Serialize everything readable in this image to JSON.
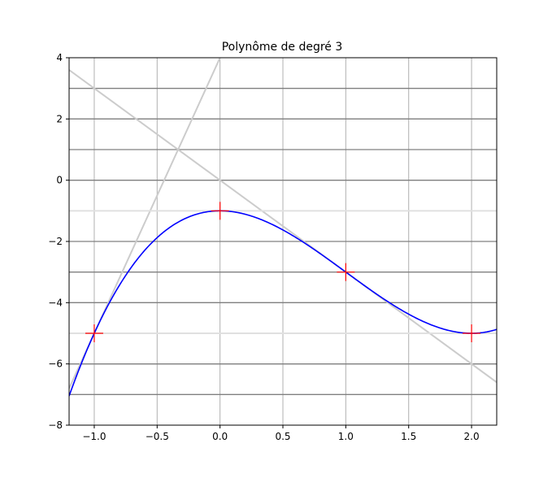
{
  "chart_data": {
    "type": "line",
    "title": "Polynôme de degré 3",
    "xlabel": "",
    "ylabel": "",
    "xlim": [
      -1.2,
      2.2
    ],
    "ylim": [
      -8,
      4
    ],
    "grid": true,
    "x_ticks": [
      -1.0,
      -0.5,
      0.0,
      0.5,
      1.0,
      1.5,
      2.0
    ],
    "x_tick_labels": [
      "−1.0",
      "−0.5",
      "0.0",
      "0.5",
      "1.0",
      "1.5",
      "2.0"
    ],
    "y_ticks": [
      -8,
      -6,
      -4,
      -2,
      0,
      2,
      4
    ],
    "y_tick_labels": [
      "−8",
      "−6",
      "−4",
      "−2",
      "0",
      "2",
      "4"
    ],
    "extra_horizontal_lines": [
      -7,
      -6,
      -5,
      -4,
      -3,
      -2,
      -1,
      0,
      1,
      2,
      3
    ],
    "series": [
      {
        "kind": "curve",
        "function": "x^3 - 3x^2 - 1",
        "x_range": [
          -1.2,
          2.2
        ],
        "color": "#0000ff"
      },
      {
        "kind": "line",
        "slope": 9,
        "intercept": 4,
        "color": "#cccccc"
      },
      {
        "kind": "line",
        "slope": -3,
        "intercept": 0,
        "color": "#cccccc"
      },
      {
        "kind": "line",
        "slope": 0,
        "intercept": -1,
        "color": "#e0e0e0"
      },
      {
        "kind": "line",
        "slope": 0,
        "intercept": -5,
        "color": "#e0e0e0"
      }
    ],
    "markers": [
      {
        "x": -1,
        "y": -5
      },
      {
        "x": 0,
        "y": -1
      },
      {
        "x": 1,
        "y": -3
      },
      {
        "x": 2,
        "y": -5
      }
    ],
    "marker_color": "#ff0000",
    "grid_color": "#b0b0b0",
    "hline_color": "#808080"
  }
}
